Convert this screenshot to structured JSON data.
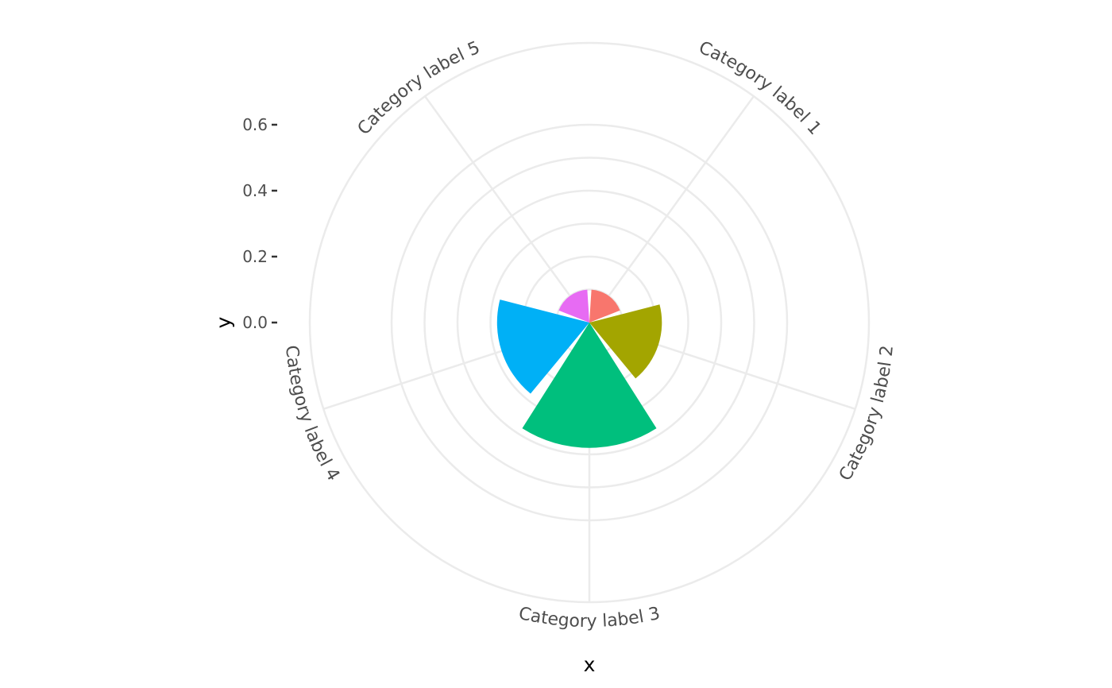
{
  "chart_data": {
    "type": "bar",
    "coordinate_system": "polar",
    "categories": [
      "Category label 1",
      "Category label 2",
      "Category label 3",
      "Category label 4",
      "Category label 5"
    ],
    "values": [
      0.1,
      0.22,
      0.38,
      0.28,
      0.1
    ],
    "colors": [
      "#F8766D",
      "#A3A500",
      "#00BF7D",
      "#00B0F6",
      "#E76BF3"
    ],
    "xlabel": "x",
    "ylabel": "y",
    "ylim": [
      0,
      0.6
    ],
    "y_ticks": [
      "0.0",
      "0.2",
      "0.4",
      "0.6"
    ],
    "y_tick_values": [
      0,
      0.2,
      0.4,
      0.6
    ],
    "grid": true,
    "legend": "none"
  }
}
